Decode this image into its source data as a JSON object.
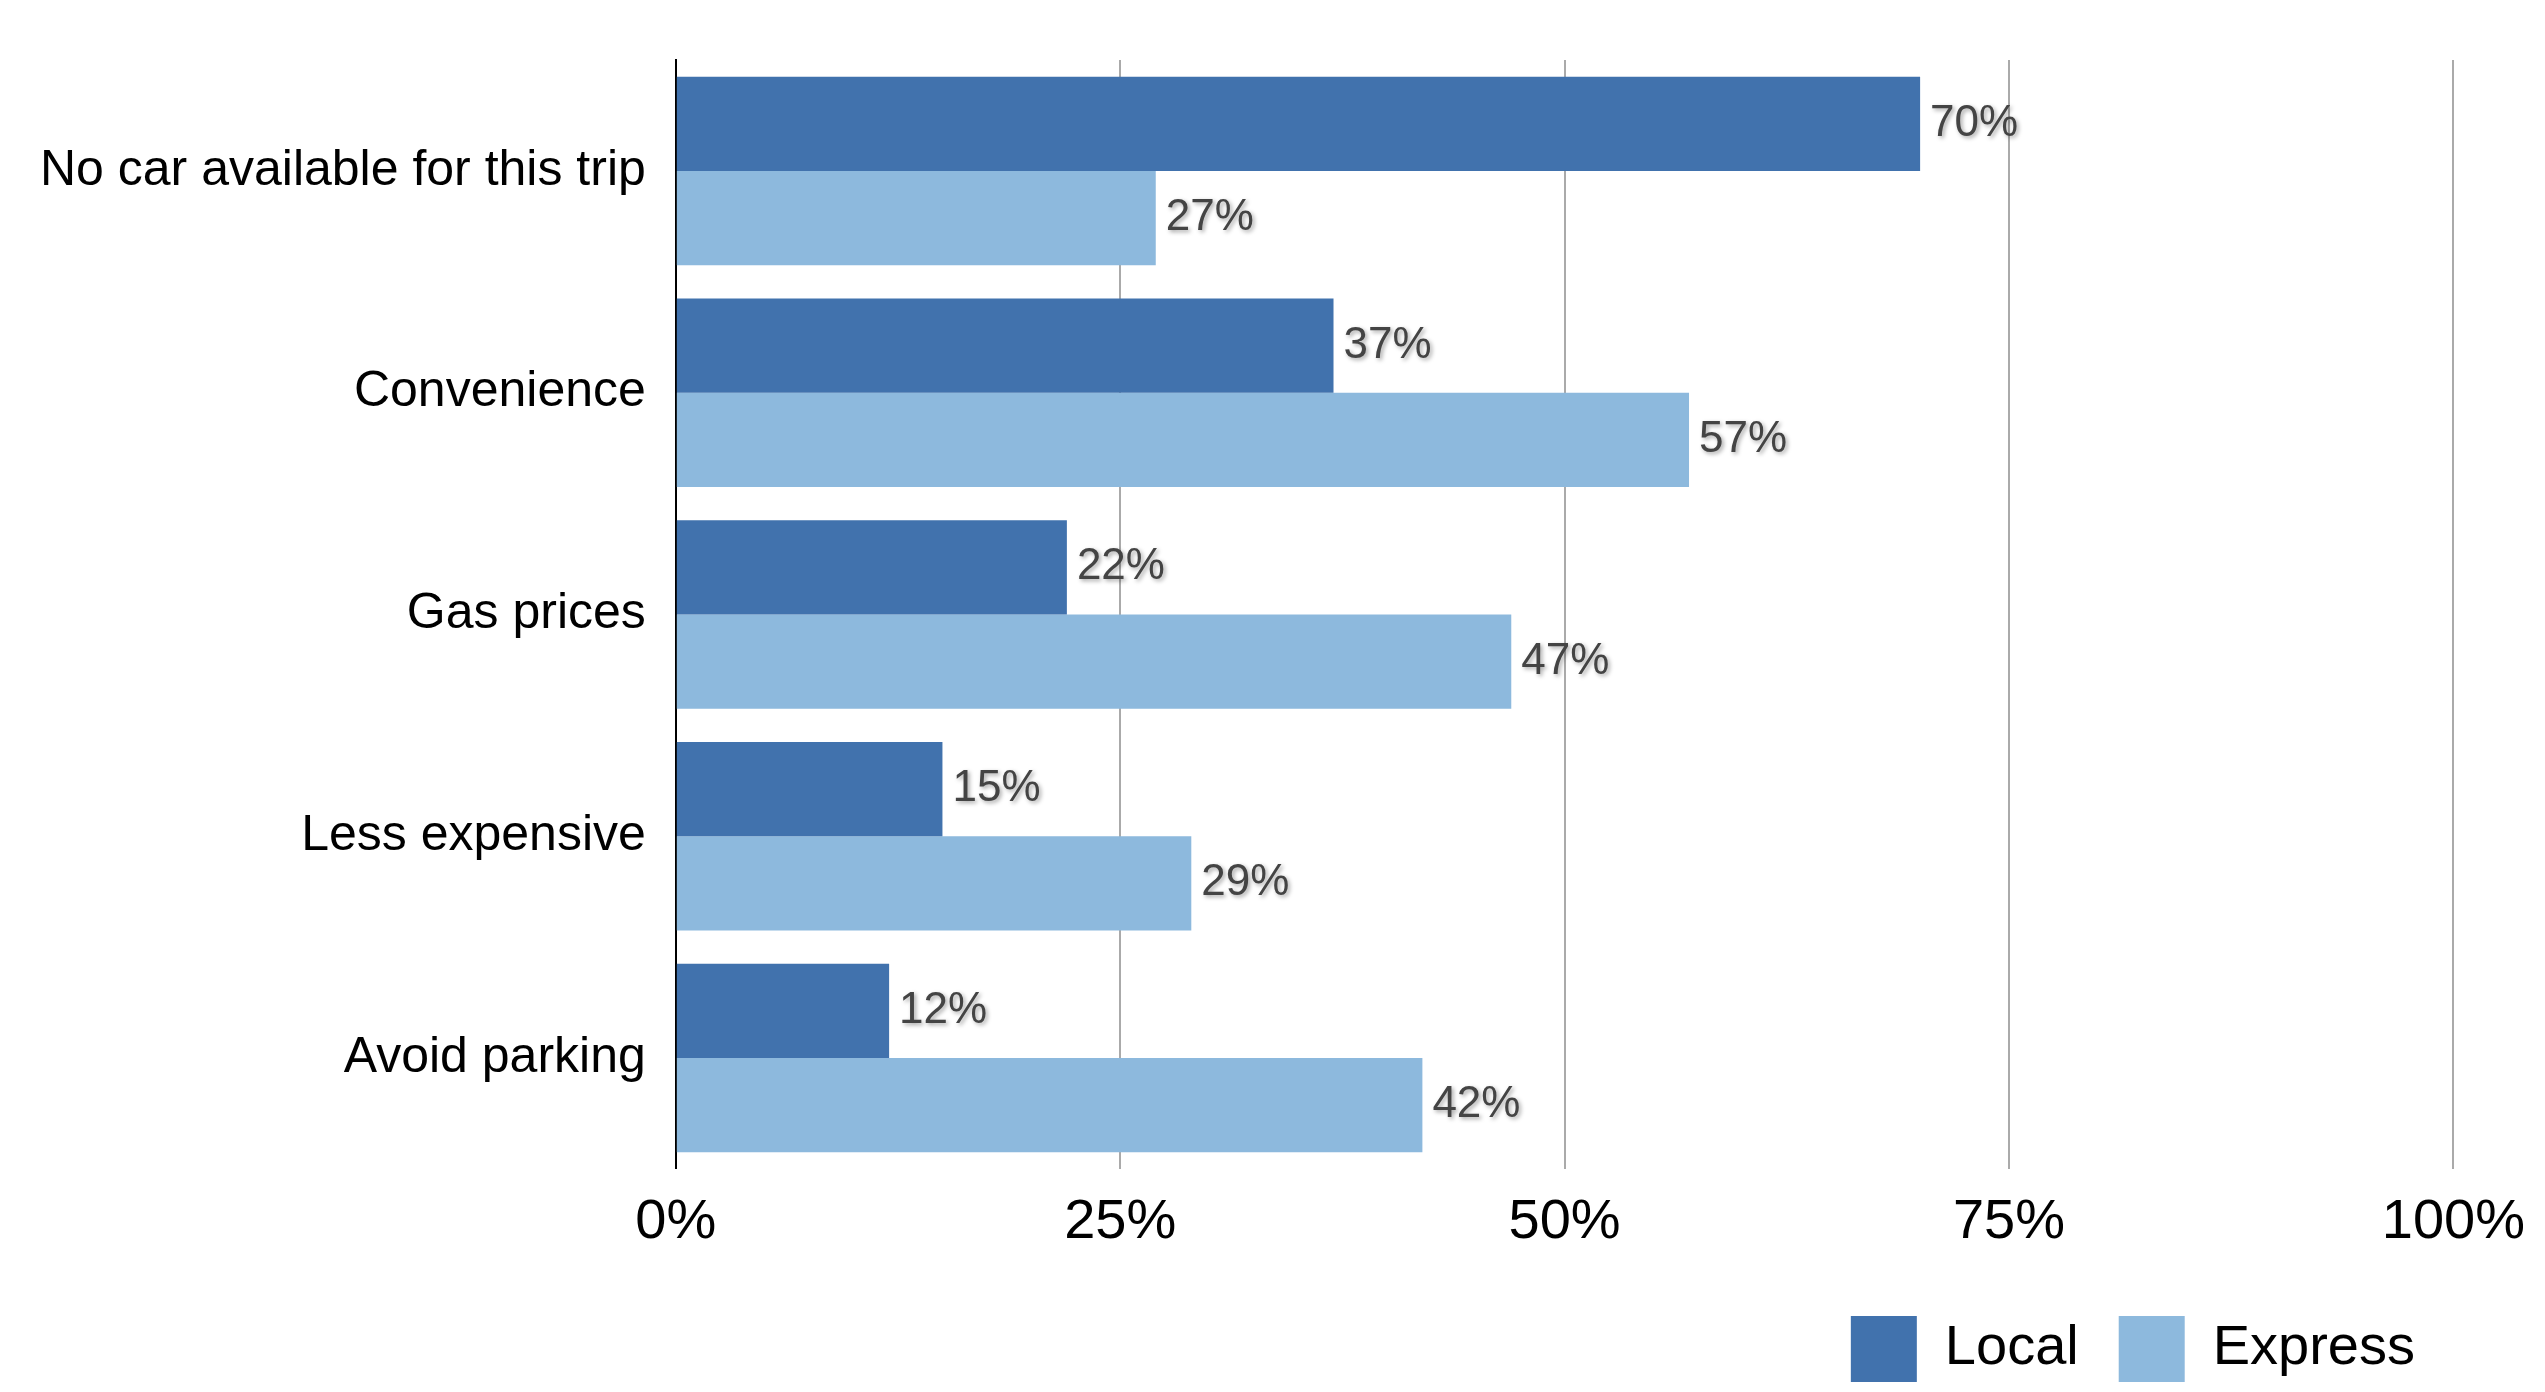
{
  "chart_data": {
    "type": "bar",
    "orientation": "horizontal",
    "categories": [
      "No car available for this trip",
      "Convenience",
      "Gas prices",
      "Less expensive",
      "Avoid parking"
    ],
    "series": [
      {
        "name": "Local",
        "color": "#4172ad",
        "values": [
          70,
          37,
          22,
          15,
          12
        ],
        "value_labels": [
          "70%",
          "37%",
          "22%",
          "15%",
          "12%"
        ]
      },
      {
        "name": "Express",
        "color": "#8db9dd",
        "values": [
          27,
          57,
          47,
          29,
          42
        ],
        "value_labels": [
          "27%",
          "57%",
          "47%",
          "29%",
          "42%"
        ]
      }
    ],
    "xlim": [
      0,
      100
    ],
    "xticks": [
      {
        "value": 0,
        "label": "0%"
      },
      {
        "value": 25,
        "label": "25%"
      },
      {
        "value": 50,
        "label": "50%"
      },
      {
        "value": 75,
        "label": "75%"
      },
      {
        "value": 100,
        "label": "100%"
      }
    ],
    "grid": "x",
    "legend": "bottom right"
  }
}
